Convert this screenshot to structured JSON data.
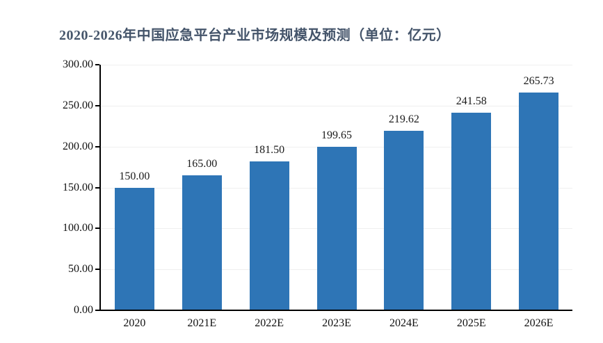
{
  "chart_data": {
    "type": "bar",
    "title": "2020-2026年中国应急平台产业市场规模及预测（单位：亿元）",
    "categories": [
      "2020",
      "2021E",
      "2022E",
      "2023E",
      "2024E",
      "2025E",
      "2026E"
    ],
    "values": [
      150.0,
      165.0,
      181.5,
      199.65,
      219.62,
      241.58,
      265.73
    ],
    "data_labels": [
      "150.00",
      "165.00",
      "181.50",
      "199.65",
      "219.62",
      "241.58",
      "265.73"
    ],
    "xlabel": "",
    "ylabel": "",
    "ylim": [
      0,
      300
    ],
    "y_ticks": [
      "0.00",
      "50.00",
      "100.00",
      "150.00",
      "200.00",
      "250.00",
      "300.00"
    ],
    "y_tick_values": [
      0,
      50,
      100,
      150,
      200,
      250,
      300
    ],
    "grid": true,
    "legend": "none",
    "colors": {
      "bar": "#2E75B6",
      "title": "#44546A",
      "axis": "#000000",
      "gridline": "#EFEFEF",
      "tick_text": "#111111",
      "background": "#FFFFFF"
    }
  }
}
